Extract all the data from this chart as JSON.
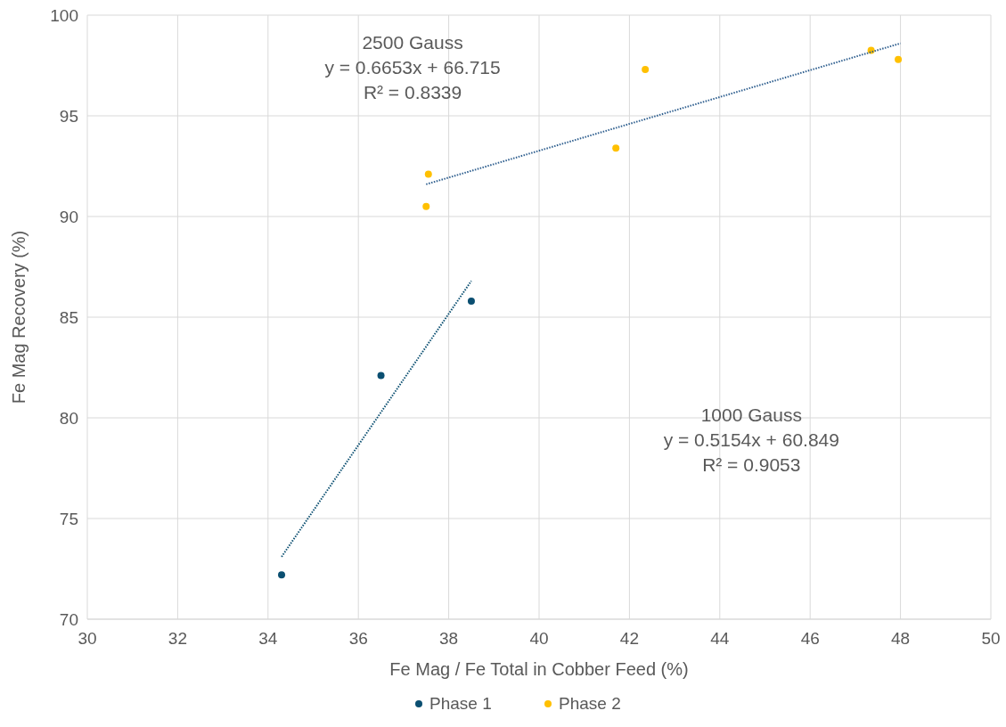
{
  "chart_data": {
    "type": "scatter",
    "xlabel": "Fe Mag / Fe Total in Cobber Feed (%)",
    "ylabel": "Fe Mag Recovery (%)",
    "xlim": [
      30,
      50
    ],
    "xticks": [
      30,
      32,
      34,
      36,
      38,
      40,
      42,
      44,
      46,
      48,
      50
    ],
    "ylim": [
      70,
      100
    ],
    "yticks": [
      70,
      75,
      80,
      85,
      90,
      95,
      100
    ],
    "grid": true,
    "legend": "bottom",
    "marker": "circle",
    "series": [
      {
        "name": "Phase 1",
        "color": "#0b4f71",
        "x": [
          34.3,
          36.5,
          38.5
        ],
        "values": [
          72.2,
          82.1,
          85.8
        ]
      },
      {
        "name": "Phase 2",
        "color": "#ffc000",
        "x": [
          37.5,
          37.55,
          41.7,
          42.35,
          47.35,
          47.95
        ],
        "values": [
          90.5,
          92.1,
          93.4,
          97.3,
          98.25,
          97.8
        ]
      },
      {
        "type": "line",
        "color": "#0b4f71",
        "line_style": "dotted",
        "marker": "none",
        "x": [
          34.3,
          38.5
        ],
        "values": [
          73.1,
          86.8
        ]
      },
      {
        "type": "line",
        "color": "#2f5f8f",
        "line_style": "dotted",
        "marker": "none",
        "x": [
          37.5,
          48
        ],
        "values": [
          91.6,
          98.6
        ]
      }
    ],
    "annotations": [
      "2500 Gauss\ny = 0.6653x + 66.715\nR² = 0.8339",
      "1000 Gauss\ny = 0.5154x + 60.849\nR² = 0.9053"
    ]
  }
}
